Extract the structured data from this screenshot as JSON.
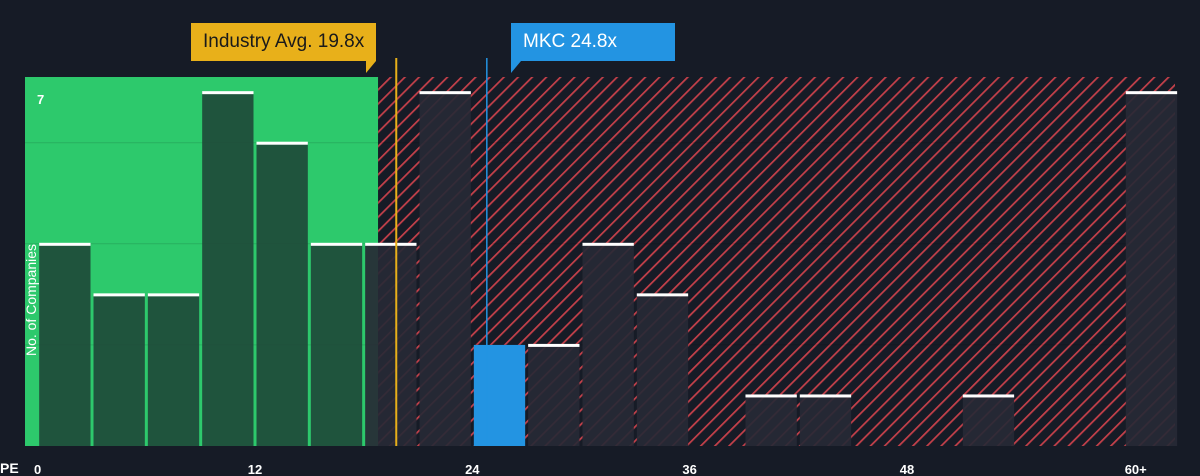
{
  "chart_data": {
    "type": "bar",
    "xlabel": "PE",
    "ylabel": "No. of Companies",
    "x_ticks": [
      "0",
      "12",
      "24",
      "36",
      "48",
      "60+"
    ],
    "y_ticks": [
      "7"
    ],
    "ylim": [
      0,
      7.3
    ],
    "xlim": [
      -0.7,
      62.8
    ],
    "bin_width": 3,
    "bins": [
      {
        "start": 0,
        "value": 4
      },
      {
        "start": 3,
        "value": 3
      },
      {
        "start": 6,
        "value": 3
      },
      {
        "start": 9,
        "value": 7
      },
      {
        "start": 12,
        "value": 6
      },
      {
        "start": 15,
        "value": 4
      },
      {
        "start": 18,
        "value": 4
      },
      {
        "start": 21,
        "value": 7
      },
      {
        "start": 24,
        "value": 2,
        "highlight": true
      },
      {
        "start": 27,
        "value": 2
      },
      {
        "start": 30,
        "value": 4
      },
      {
        "start": 33,
        "value": 3
      },
      {
        "start": 39,
        "value": 1
      },
      {
        "start": 42,
        "value": 1
      },
      {
        "start": 51,
        "value": 1
      },
      {
        "start": 60,
        "value": 7
      }
    ],
    "fair_range_end": 18.8,
    "industry_avg": {
      "label": "Industry Avg. 19.8x",
      "value": 19.8
    },
    "company": {
      "label": "MKC 24.8x",
      "value": 24.8
    },
    "grid": true
  },
  "colors": {
    "background": "#161b26",
    "fair_zone": "#2dc96c",
    "bar_in_fair_zone": "#1e4a3a",
    "bar_overvalued": "#272935",
    "hatch": "#c4404a",
    "highlight_bar": "#2394e2",
    "industry_line": "#e8b01a",
    "company_line": "#2394e2",
    "bar_cap": "#ffffff"
  }
}
